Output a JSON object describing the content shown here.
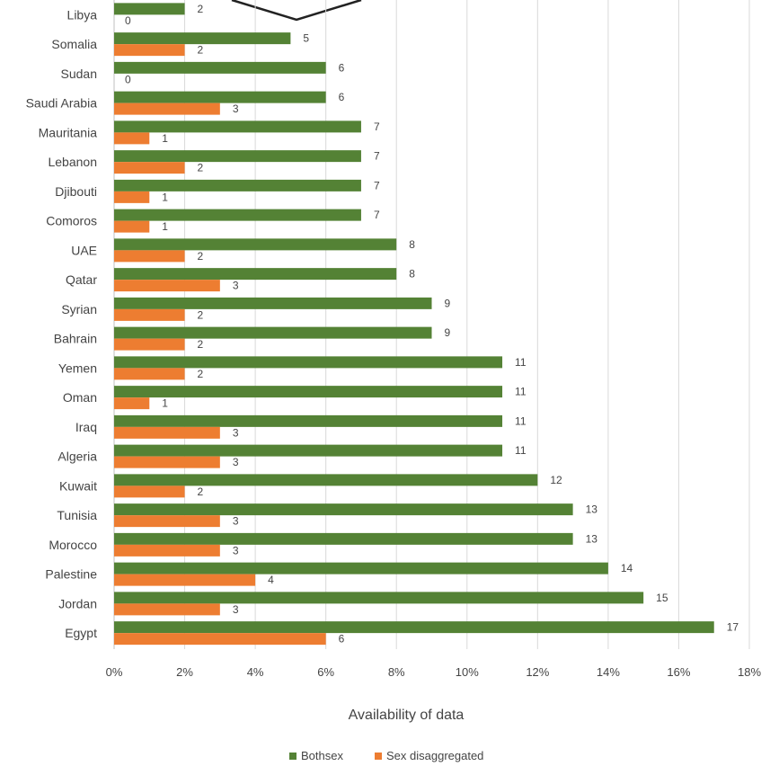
{
  "chart_data": {
    "type": "bar",
    "orientation": "horizontal",
    "categories": [
      "Libya",
      "Somalia",
      "Sudan",
      "Saudi Arabia",
      "Mauritania",
      "Lebanon",
      "Djibouti",
      "Comoros",
      "UAE",
      "Qatar",
      "Syrian",
      "Bahrain",
      "Yemen",
      "Oman",
      "Iraq",
      "Algeria",
      "Kuwait",
      "Tunisia",
      "Morocco",
      "Palestine",
      "Jordan",
      "Egypt"
    ],
    "series": [
      {
        "name": "Bothsex",
        "color": "#548235",
        "values": [
          2,
          5,
          6,
          6,
          7,
          7,
          7,
          7,
          8,
          8,
          9,
          9,
          11,
          11,
          11,
          11,
          12,
          13,
          13,
          14,
          15,
          17
        ]
      },
      {
        "name": "Sex disaggregated",
        "color": "#ED7D31",
        "values": [
          0,
          2,
          0,
          3,
          1,
          2,
          1,
          1,
          2,
          3,
          2,
          2,
          2,
          1,
          3,
          3,
          2,
          3,
          3,
          4,
          3,
          6
        ]
      }
    ],
    "x_ticks": [
      "0%",
      "2%",
      "4%",
      "6%",
      "8%",
      "10%",
      "12%",
      "14%",
      "16%",
      "18%"
    ],
    "xlim": [
      0,
      18
    ],
    "xlabel": "Availability of data",
    "ylabel": "",
    "grid": "vertical",
    "legend_position": "bottom"
  }
}
